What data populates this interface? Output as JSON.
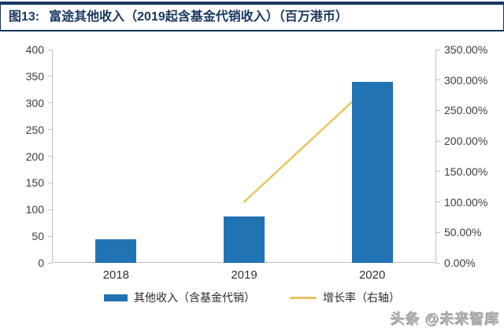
{
  "header": {
    "figure_label": "图13:",
    "title": "富途其他收入（2019起含基金代销收入）（百万港币）"
  },
  "chart_data": {
    "type": "bar",
    "title": "富途其他收入（2019起含基金代销收入）（百万港币）",
    "categories": [
      "2018",
      "2019",
      "2020"
    ],
    "series": [
      {
        "name": "其他收入（含基金代销）",
        "type": "bar",
        "axis": "left",
        "color": "#2273B4",
        "values": [
          45,
          87,
          340
        ]
      },
      {
        "name": "增长率（右轴）",
        "type": "line",
        "axis": "right",
        "color": "#EAC55E",
        "values": [
          null,
          100,
          295
        ],
        "unit": "%"
      }
    ],
    "left_axis": {
      "min": 0,
      "max": 400,
      "step": 50,
      "tick_labels": [
        "0",
        "50",
        "100",
        "150",
        "200",
        "250",
        "300",
        "350",
        "400"
      ]
    },
    "right_axis": {
      "min": 0,
      "max": 350,
      "step": 50,
      "tick_labels": [
        "0.00%",
        "50.00%",
        "100.00%",
        "150.00%",
        "200.00%",
        "250.00%",
        "300.00%",
        "350.00%"
      ]
    },
    "grid": false,
    "legend_position": "bottom"
  },
  "legend": {
    "items": [
      {
        "label": "其他收入（含基金代销）",
        "swatch": "bar"
      },
      {
        "label": "增长率（右轴）",
        "swatch": "line"
      }
    ]
  },
  "watermark": {
    "text": "头条 @未来智库"
  },
  "colors": {
    "accent_navy": "#17375E",
    "bar_blue": "#2273B4",
    "line_gold": "#EAC55E",
    "axis_gray": "#BFBFBF"
  }
}
